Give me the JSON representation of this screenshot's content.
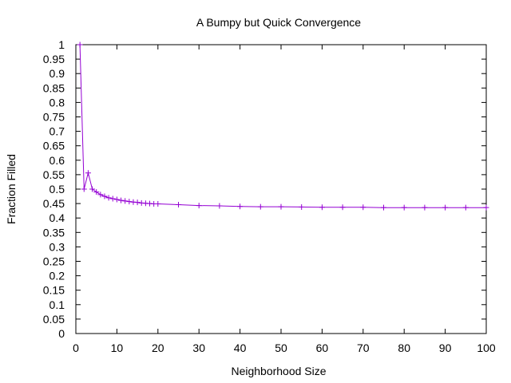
{
  "chart_data": {
    "type": "line",
    "title": "A Bumpy but Quick Convergence",
    "xlabel": "Neighborhood Size",
    "ylabel": "Fraction Filled",
    "xlim": [
      0,
      100
    ],
    "ylim": [
      0,
      1
    ],
    "x_ticks": [
      "0",
      "10",
      "20",
      "30",
      "40",
      "50",
      "60",
      "70",
      "80",
      "90",
      "100"
    ],
    "y_ticks": [
      "0",
      "0.05",
      "0.1",
      "0.15",
      "0.2",
      "0.25",
      "0.3",
      "0.35",
      "0.4",
      "0.45",
      "0.5",
      "0.55",
      "0.6",
      "0.65",
      "0.7",
      "0.75",
      "0.8",
      "0.85",
      "0.9",
      "0.95",
      "1"
    ],
    "grid": false,
    "legend": "none",
    "series": [
      {
        "color": "#9400d3",
        "marker": "plus",
        "points": [
          [
            1,
            1.0
          ],
          [
            2,
            0.5
          ],
          [
            3,
            0.556
          ],
          [
            4,
            0.5
          ],
          [
            5,
            0.49
          ],
          [
            6,
            0.481
          ],
          [
            7,
            0.475
          ],
          [
            8,
            0.47
          ],
          [
            9,
            0.467
          ],
          [
            10,
            0.464
          ],
          [
            11,
            0.461
          ],
          [
            12,
            0.459
          ],
          [
            13,
            0.457
          ],
          [
            14,
            0.455
          ],
          [
            15,
            0.454
          ],
          [
            16,
            0.452
          ],
          [
            17,
            0.451
          ],
          [
            18,
            0.45
          ],
          [
            19,
            0.449
          ],
          [
            20,
            0.449
          ],
          [
            25,
            0.446
          ],
          [
            30,
            0.443
          ],
          [
            35,
            0.442
          ],
          [
            40,
            0.44
          ],
          [
            45,
            0.439
          ],
          [
            50,
            0.439
          ],
          [
            55,
            0.438
          ],
          [
            60,
            0.437
          ],
          [
            65,
            0.437
          ],
          [
            70,
            0.437
          ],
          [
            75,
            0.436
          ],
          [
            80,
            0.436
          ],
          [
            85,
            0.436
          ],
          [
            90,
            0.436
          ],
          [
            95,
            0.436
          ],
          [
            100,
            0.436
          ]
        ]
      }
    ]
  }
}
